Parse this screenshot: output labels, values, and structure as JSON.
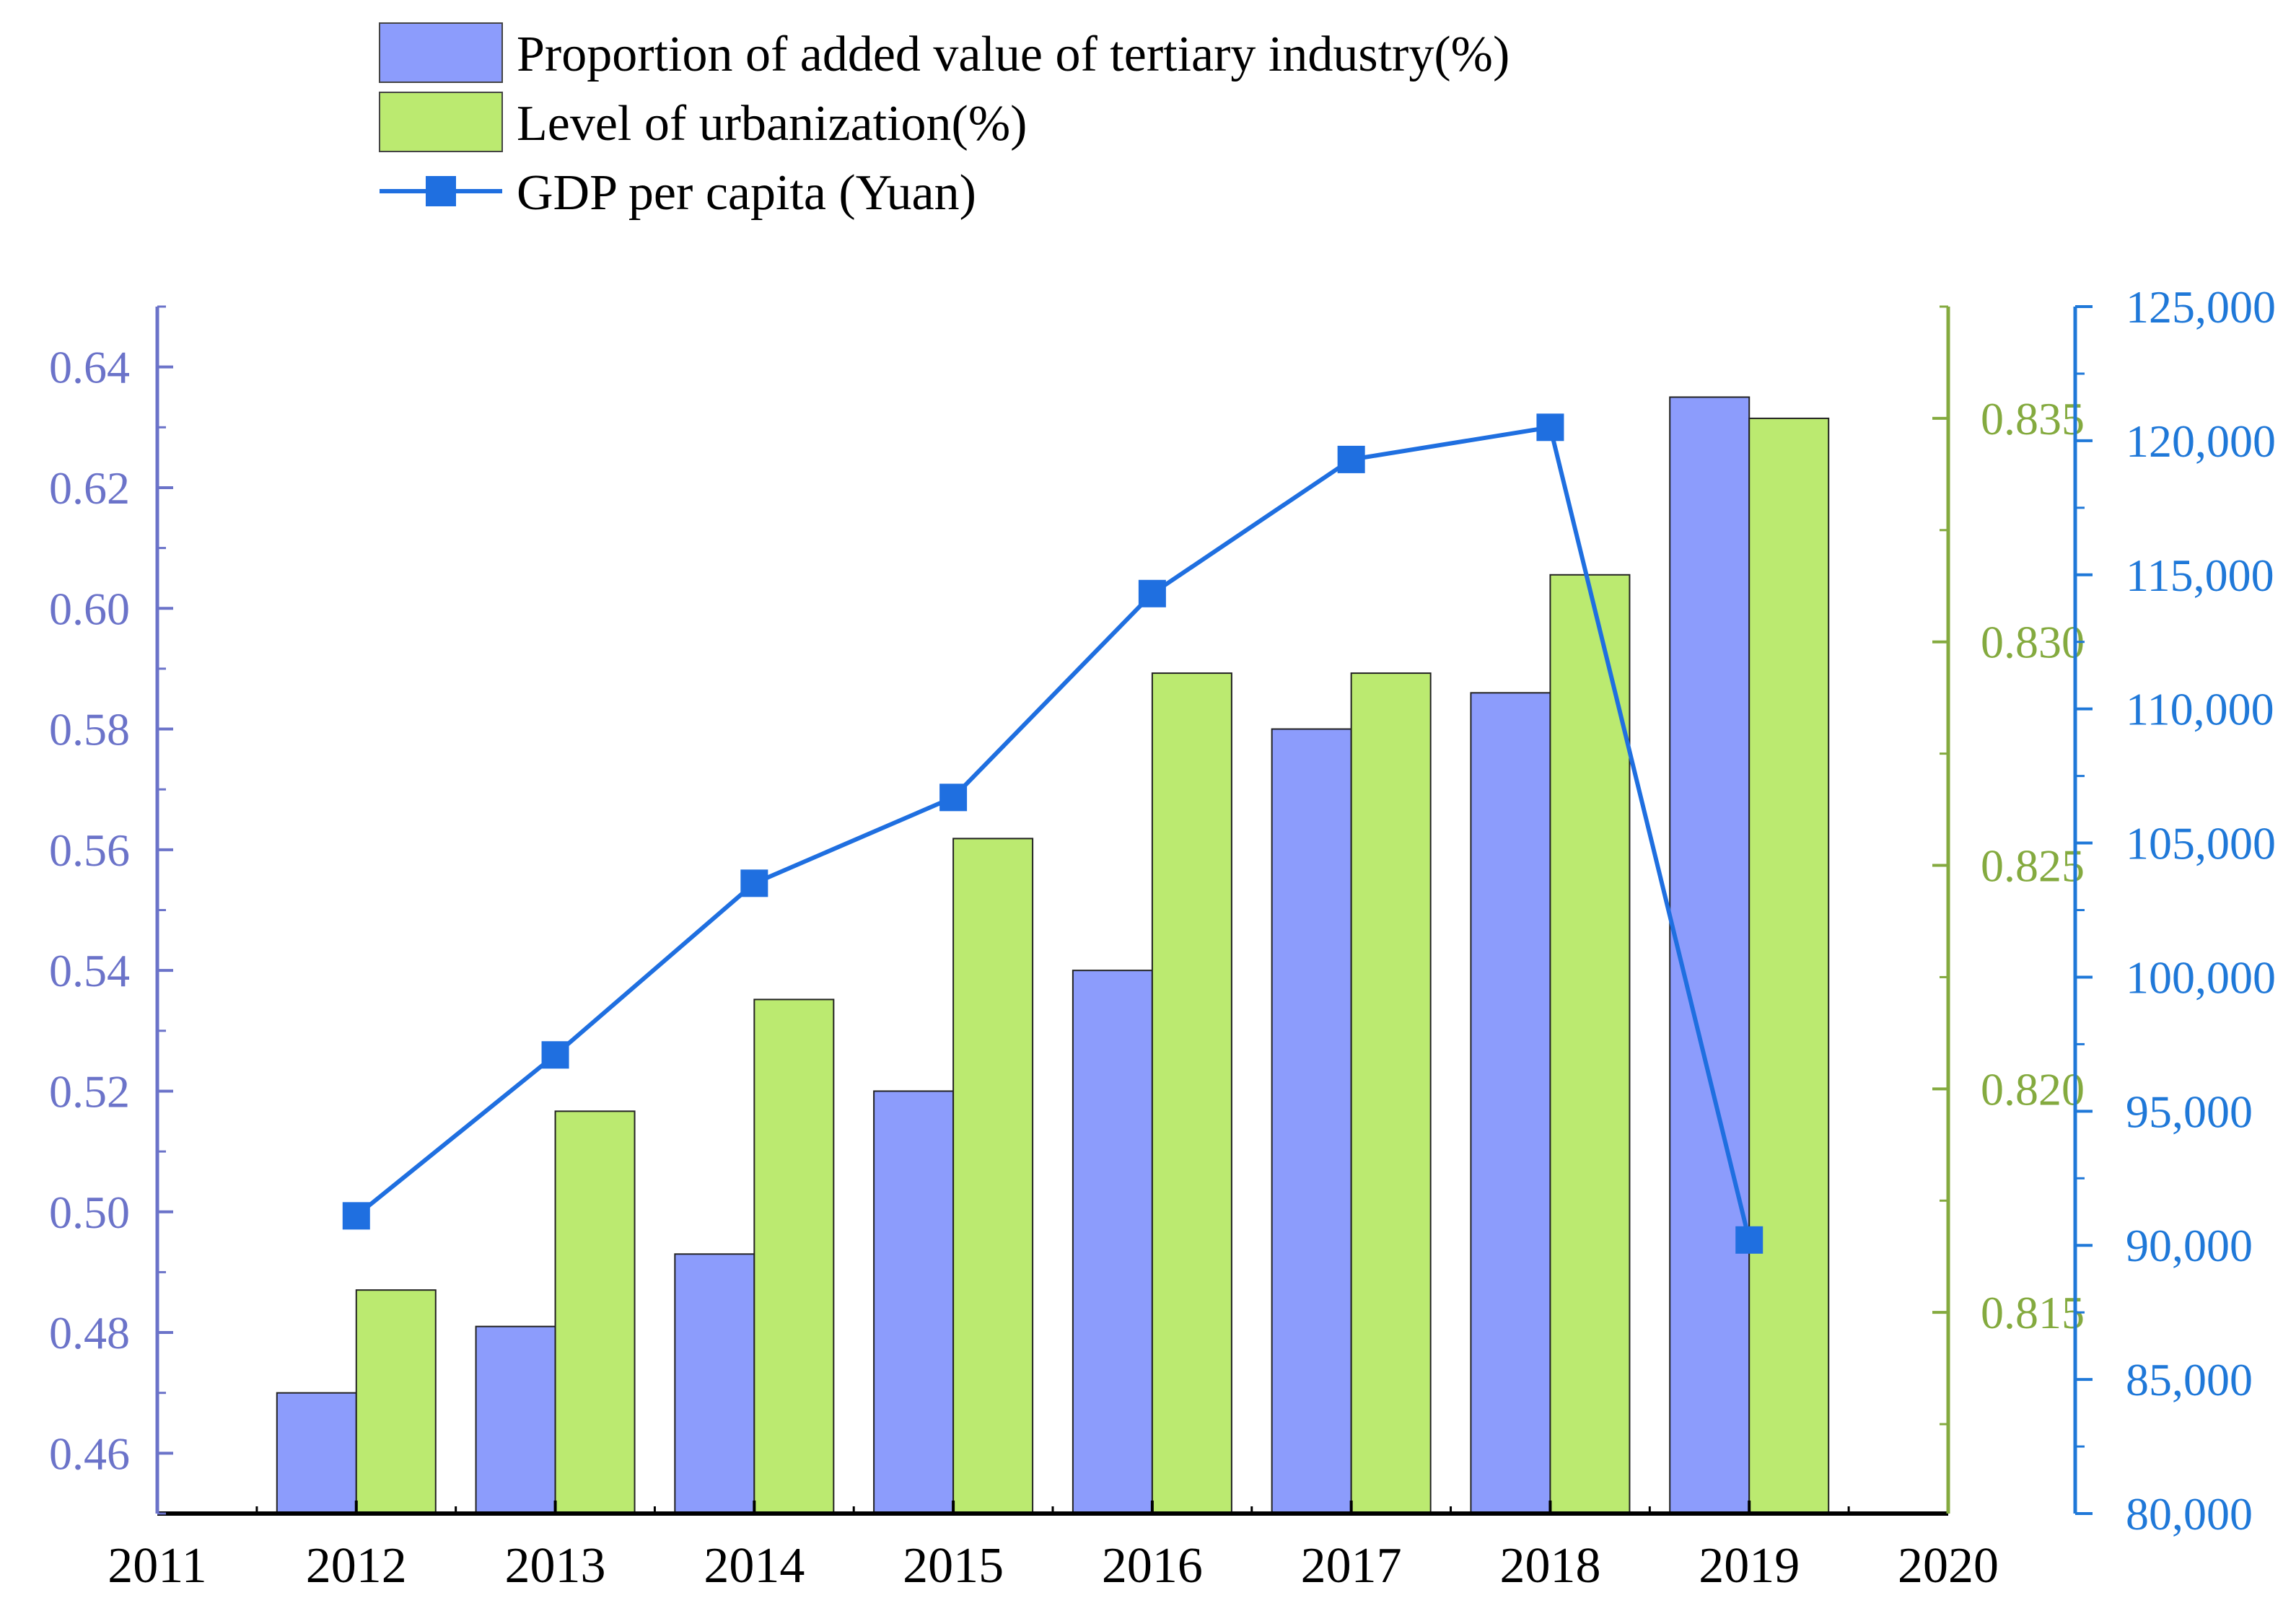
{
  "chart_data": {
    "type": "bar",
    "categories": [
      "2012",
      "2013",
      "2014",
      "2015",
      "2016",
      "2017",
      "2018",
      "2019"
    ],
    "x_ticks": [
      "2011",
      "2012",
      "2013",
      "2014",
      "2015",
      "2016",
      "2017",
      "2018",
      "2019",
      "2020"
    ],
    "series": [
      {
        "name": "Proportion of added value of tertiary industry(%)",
        "type": "bar",
        "axis": "left",
        "color": "#8c9cfc",
        "values": [
          0.47,
          0.481,
          0.493,
          0.52,
          0.54,
          0.58,
          0.586,
          0.635
        ]
      },
      {
        "name": "Level of urbanization(%)",
        "type": "bar",
        "axis": "right1",
        "color": "#bbea70",
        "values": [
          0.8155,
          0.8195,
          0.822,
          0.8256,
          0.8293,
          0.8293,
          0.8315,
          0.835
        ]
      },
      {
        "name": "GDP per capita (Yuan)",
        "type": "line",
        "axis": "right2",
        "color": "#1f6fe0",
        "values": [
          91100,
          97100,
          103500,
          106700,
          114300,
          119300,
          120500,
          90200
        ]
      }
    ],
    "axes": {
      "left": {
        "range": [
          0.45,
          0.65
        ],
        "ticks": [
          "0.46",
          "0.48",
          "0.50",
          "0.52",
          "0.54",
          "0.56",
          "0.58",
          "0.60",
          "0.62",
          "0.64"
        ],
        "color": "#6b73c9"
      },
      "right1": {
        "range": [
          0.8105,
          0.8375
        ],
        "ticks": [
          "0.815",
          "0.820",
          "0.825",
          "0.830",
          "0.835"
        ],
        "color": "#84aa3f"
      },
      "right2": {
        "range": [
          80000,
          125000
        ],
        "ticks": [
          "80,000",
          "85,000",
          "90,000",
          "95,000",
          "100,000",
          "105,000",
          "110,000",
          "115,000",
          "120,000",
          "125,000"
        ],
        "color": "#1f78d8"
      },
      "x": {
        "range": [
          2011,
          2020
        ]
      }
    },
    "legend_position": "top-left",
    "grid": false
  }
}
